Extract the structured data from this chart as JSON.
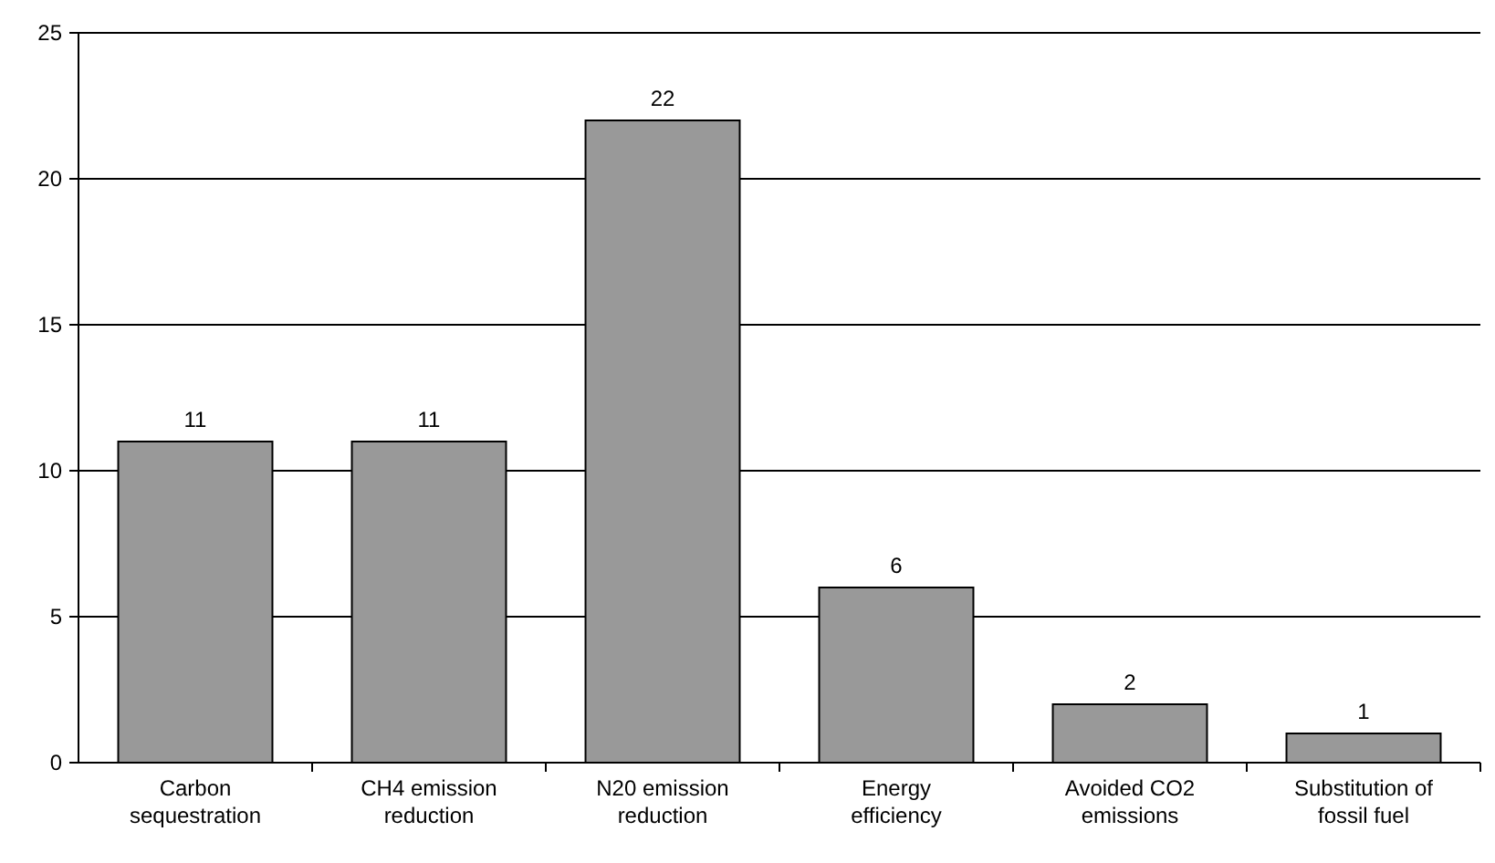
{
  "chart_data": {
    "type": "bar",
    "categories": [
      "Carbon sequestration",
      "CH4 emission reduction",
      "N20 emission reduction",
      "Energy efficiency",
      "Avoided CO2 emissions",
      "Substitution of fossil fuel"
    ],
    "values": [
      11,
      11,
      22,
      6,
      2,
      1
    ],
    "color": "#999999",
    "ylim": [
      0,
      25
    ],
    "yticks": [
      0,
      5,
      10,
      15,
      20,
      25
    ],
    "grid": "y",
    "data_labels": true
  }
}
